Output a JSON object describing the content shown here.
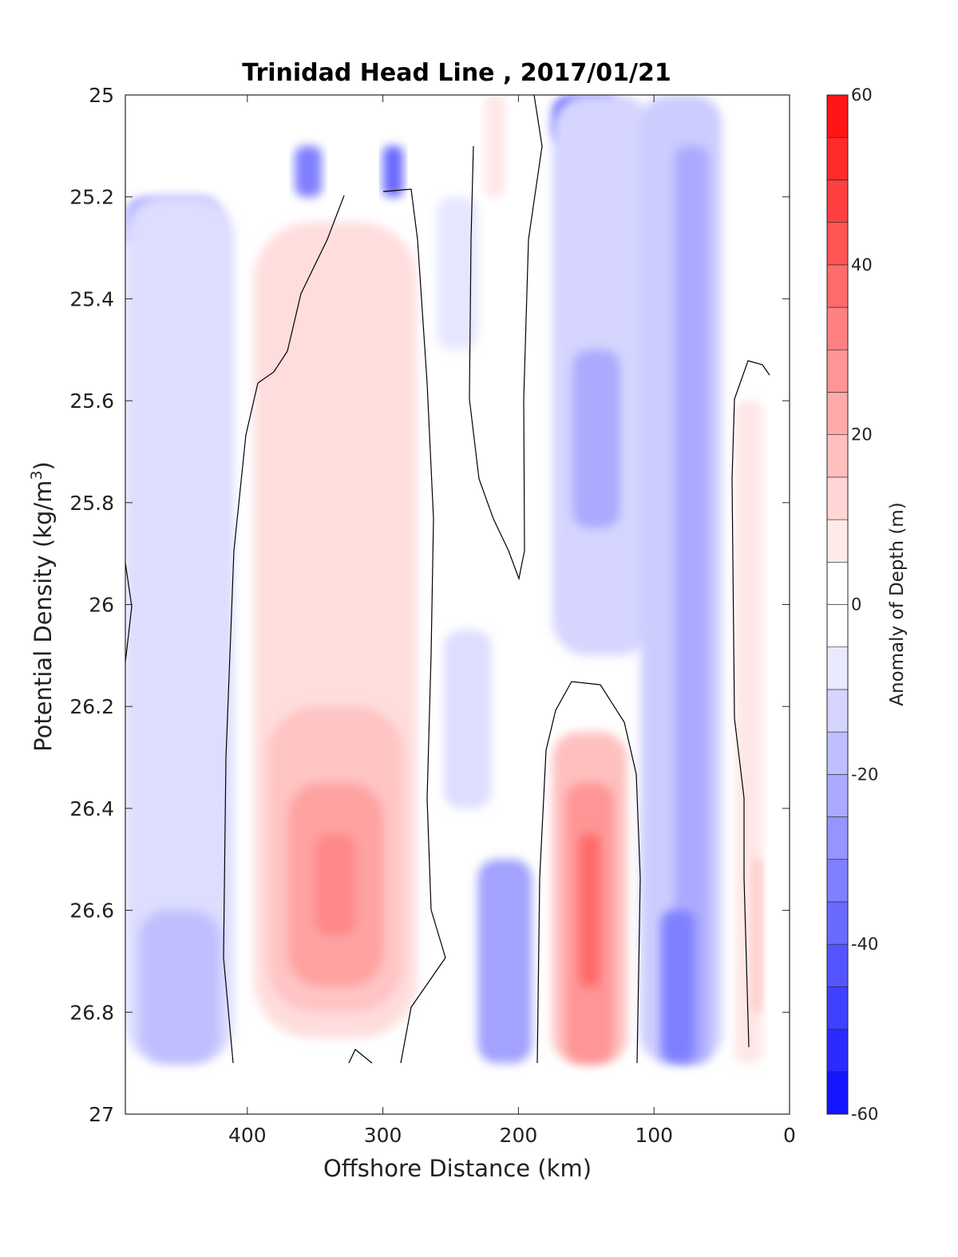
{
  "chart_data": {
    "type": "heatmap",
    "subtype": "filled-contour",
    "title": "Trinidad Head Line , 2017/01/21",
    "xlabel": "Offshore Distance (km)",
    "ylabel_main": "Potential Density (kg/m",
    "ylabel_sup": "3",
    "ylabel_close": ")",
    "xlim": [
      490,
      0
    ],
    "ylim": [
      25,
      27
    ],
    "x_direction": "reversed",
    "y_direction": "reversed",
    "xticks": [
      400,
      300,
      200,
      100,
      0
    ],
    "yticks": [
      25,
      25.2,
      25.4,
      25.6,
      25.8,
      26,
      26.2,
      26.4,
      26.6,
      26.8,
      27
    ],
    "colorbar": {
      "label": "Anomaly of Depth (m)",
      "range": [
        -60,
        60
      ],
      "step": 5,
      "ticks": [
        60,
        40,
        20,
        0,
        -20,
        -40,
        -60
      ],
      "colormap": "blue-white-red",
      "neg_color": "#0000ff",
      "pos_color": "#ff0000",
      "zero_color": "#ffffff"
    },
    "zero_contour_color": "#000000",
    "regions": [
      {
        "x": [
          490,
          420
        ],
        "y": [
          25.2,
          25.3
        ],
        "value": -20
      },
      {
        "x": [
          490,
          410
        ],
        "y": [
          25.2,
          26.9
        ],
        "value": -8
      },
      {
        "x": [
          480,
          420
        ],
        "y": [
          26.6,
          26.9
        ],
        "value": -15
      },
      {
        "x": [
          365,
          345
        ],
        "y": [
          25.1,
          25.2
        ],
        "value": -30
      },
      {
        "x": [
          300,
          285
        ],
        "y": [
          25.1,
          25.2
        ],
        "value": -35
      },
      {
        "x": [
          395,
          275
        ],
        "y": [
          25.25,
          26.85
        ],
        "value": 8
      },
      {
        "x": [
          385,
          285
        ],
        "y": [
          26.2,
          26.8
        ],
        "value": 14
      },
      {
        "x": [
          370,
          300
        ],
        "y": [
          26.35,
          26.75
        ],
        "value": 22
      },
      {
        "x": [
          350,
          320
        ],
        "y": [
          26.45,
          26.65
        ],
        "value": 28
      },
      {
        "x": [
          225,
          210
        ],
        "y": [
          25.0,
          25.2
        ],
        "value": 6
      },
      {
        "x": [
          260,
          230
        ],
        "y": [
          25.2,
          25.5
        ],
        "value": -6
      },
      {
        "x": [
          255,
          220
        ],
        "y": [
          26.05,
          26.4
        ],
        "value": -8
      },
      {
        "x": [
          230,
          190
        ],
        "y": [
          26.5,
          26.9
        ],
        "value": -22
      },
      {
        "x": [
          175,
          120
        ],
        "y": [
          26.25,
          26.9
        ],
        "value": 15
      },
      {
        "x": [
          165,
          130
        ],
        "y": [
          26.35,
          26.9
        ],
        "value": 25
      },
      {
        "x": [
          155,
          140
        ],
        "y": [
          26.45,
          26.75
        ],
        "value": 35
      },
      {
        "x": [
          175,
          125
        ],
        "y": [
          25.0,
          25.1
        ],
        "value": -35
      },
      {
        "x": [
          175,
          100
        ],
        "y": [
          25.0,
          26.1
        ],
        "value": -10
      },
      {
        "x": [
          160,
          125
        ],
        "y": [
          25.5,
          25.85
        ],
        "value": -20
      },
      {
        "x": [
          110,
          50
        ],
        "y": [
          25.0,
          26.9
        ],
        "value": -12
      },
      {
        "x": [
          85,
          60
        ],
        "y": [
          25.1,
          26.9
        ],
        "value": -20
      },
      {
        "x": [
          95,
          70
        ],
        "y": [
          26.6,
          26.9
        ],
        "value": -30
      },
      {
        "x": [
          40,
          20
        ],
        "y": [
          25.6,
          26.9
        ],
        "value": 6
      },
      {
        "x": [
          28,
          20
        ],
        "y": [
          26.5,
          26.8
        ],
        "value": 12
      }
    ]
  }
}
